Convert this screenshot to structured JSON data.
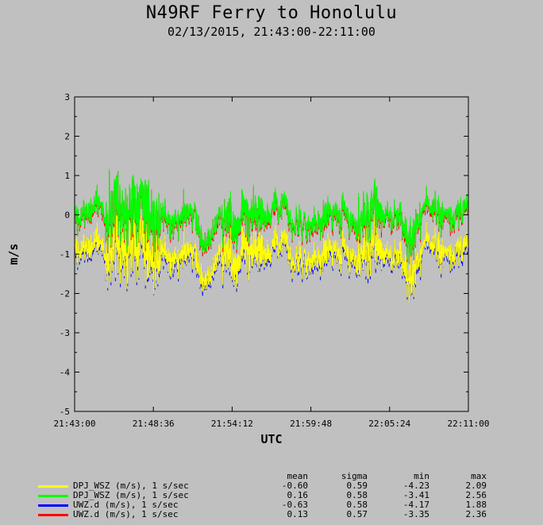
{
  "title": "N49RF Ferry to Honolulu",
  "subtitle": "02/13/2015, 21:43:00-22:11:00",
  "chart_data": {
    "type": "line",
    "xlabel": "UTC",
    "ylabel": "m/s",
    "x_tick_labels": [
      "21:43:00",
      "21:48:36",
      "21:54:12",
      "21:59:48",
      "22:05:24",
      "22:11:00"
    ],
    "y_tick_labels": [
      "-5",
      "-4",
      "-3",
      "-2",
      "-1",
      "0",
      "1",
      "2",
      "3"
    ],
    "xlim": [
      "21:43:00",
      "22:11:00"
    ],
    "ylim": [
      -5,
      3
    ],
    "stats_headers": [
      "mean",
      "sigma",
      "min",
      "max"
    ],
    "series": [
      {
        "name": "DPJ_WSZ (m/s), 1 s/sec",
        "color": "#ffff00",
        "mean": "-0.60",
        "sigma": "0.59",
        "min": "-4.23",
        "max": "2.09"
      },
      {
        "name": "DPJ_WSZ (m/s), 1 s/sec",
        "color": "#00ff00",
        "mean": "0.16",
        "sigma": "0.58",
        "min": "-3.41",
        "max": "2.56"
      },
      {
        "name": "UWZ.d (m/s), 1 s/sec",
        "color": "#0000ff",
        "mean": "-0.63",
        "sigma": "0.58",
        "min": "-4.17",
        "max": "1.88"
      },
      {
        "name": "UWZ.d (m/s), 1 s/sec",
        "color": "#ff0000",
        "mean": "0.13",
        "sigma": "0.57",
        "min": "-3.35",
        "max": "2.36"
      }
    ]
  }
}
